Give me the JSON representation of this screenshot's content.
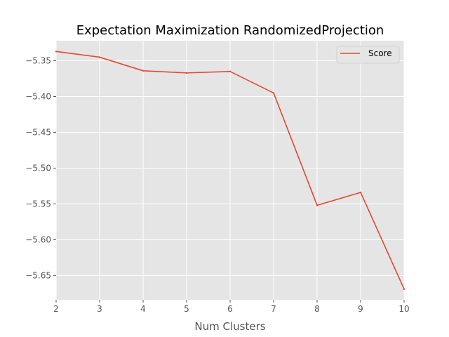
{
  "chart_data": {
    "type": "line",
    "title": "Expectation Maximization RandomizedProjection",
    "xlabel": "Num Clusters",
    "ylabel": "",
    "xlim": [
      2,
      10
    ],
    "ylim": [
      -5.684,
      -5.322
    ],
    "x": [
      2,
      3,
      4,
      5,
      6,
      7,
      8,
      9,
      10
    ],
    "x_ticks": [
      "2",
      "3",
      "4",
      "5",
      "6",
      "7",
      "8",
      "9",
      "10"
    ],
    "y_ticks": [
      -5.35,
      -5.4,
      -5.45,
      -5.5,
      -5.55,
      -5.6,
      -5.65
    ],
    "y_tick_labels": [
      "−5.35",
      "−5.40",
      "−5.45",
      "−5.50",
      "−5.55",
      "−5.60",
      "−5.65"
    ],
    "series": [
      {
        "name": "Score",
        "color": "#E24A33",
        "values": [
          -5.337,
          -5.345,
          -5.364,
          -5.367,
          -5.365,
          -5.395,
          -5.552,
          -5.534,
          -5.669
        ]
      }
    ],
    "grid": true,
    "legend_position": "top-right",
    "style": {
      "plot_background": "#E5E5E5",
      "grid_color": "#FFFFFF"
    }
  }
}
